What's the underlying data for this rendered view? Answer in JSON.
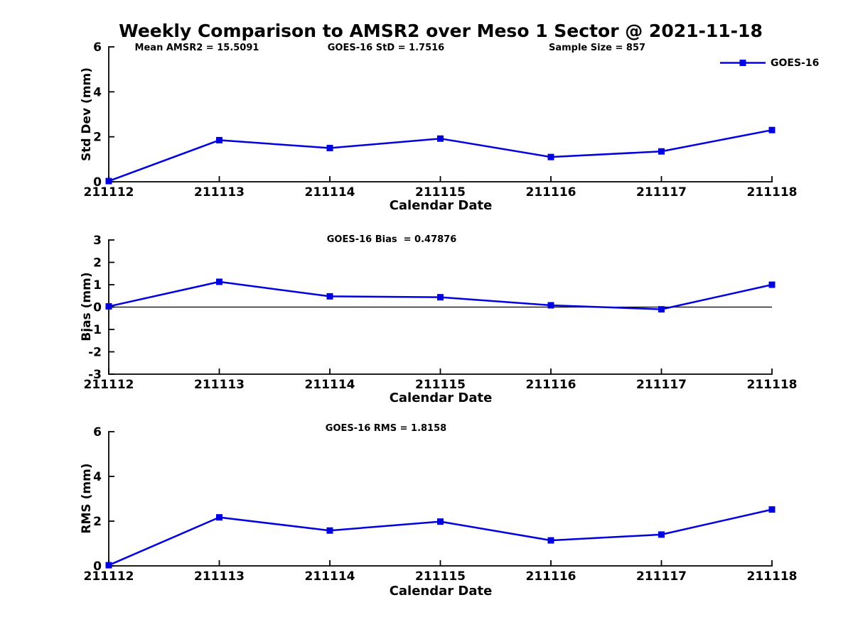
{
  "title": "Weekly Comparison to AMSR2 over Meso 1 Sector @ 2021-11-18",
  "legend": {
    "label": "GOES-16",
    "color": "#0000E0",
    "marker": "square"
  },
  "stats": {
    "mean_amsr2": "15.5091",
    "goes16_std": "1.7516",
    "sample_size": "857",
    "goes16_bias": "0.47876",
    "goes16_rms": "1.8158"
  },
  "chart_data": [
    {
      "type": "line",
      "id": "std-dev",
      "ylabel": "Std Dev (mm)",
      "xlabel": "Calendar Date",
      "categories": [
        "211112",
        "211113",
        "211114",
        "211115",
        "211116",
        "211117",
        "211118"
      ],
      "series": [
        {
          "name": "GOES-16",
          "color": "#0000E0",
          "marker": "square",
          "values": [
            0.03,
            1.85,
            1.5,
            1.92,
            1.1,
            1.35,
            2.3
          ]
        }
      ],
      "ylim": [
        0,
        6
      ],
      "yticks": [
        0,
        2,
        4,
        6
      ],
      "grid": false,
      "zero_line": false,
      "legend_position": "top-right",
      "annotations": [
        {
          "text": "Mean AMSR2 = 15.5091"
        },
        {
          "text": "GOES-16 StD = 1.7516"
        },
        {
          "text": "Sample Size = 857"
        }
      ]
    },
    {
      "type": "line",
      "id": "bias",
      "ylabel": "Bias (mm)",
      "xlabel": "Calendar Date",
      "categories": [
        "211112",
        "211113",
        "211114",
        "211115",
        "211116",
        "211117",
        "211118"
      ],
      "series": [
        {
          "name": "GOES-16",
          "color": "#0000E0",
          "marker": "square",
          "values": [
            0.03,
            1.13,
            0.48,
            0.44,
            0.08,
            -0.1,
            1.0
          ]
        }
      ],
      "ylim": [
        -3,
        3
      ],
      "yticks": [
        3,
        2,
        1,
        0,
        -1,
        -2,
        -3
      ],
      "grid": false,
      "zero_line": true,
      "legend_position": "none",
      "annotations": [
        {
          "text": "GOES-16 Bias  = 0.47876"
        }
      ]
    },
    {
      "type": "line",
      "id": "rms",
      "ylabel": "RMS (mm)",
      "xlabel": "Calendar Date",
      "categories": [
        "211112",
        "211113",
        "211114",
        "211115",
        "211116",
        "211117",
        "211118"
      ],
      "series": [
        {
          "name": "GOES-16",
          "color": "#0000E0",
          "marker": "square",
          "values": [
            0.03,
            2.17,
            1.58,
            1.98,
            1.14,
            1.4,
            2.52
          ]
        }
      ],
      "ylim": [
        0,
        6
      ],
      "yticks": [
        0,
        2,
        4,
        6
      ],
      "grid": false,
      "zero_line": false,
      "legend_position": "none",
      "annotations": [
        {
          "text": "GOES-16 RMS = 1.8158"
        }
      ]
    }
  ]
}
